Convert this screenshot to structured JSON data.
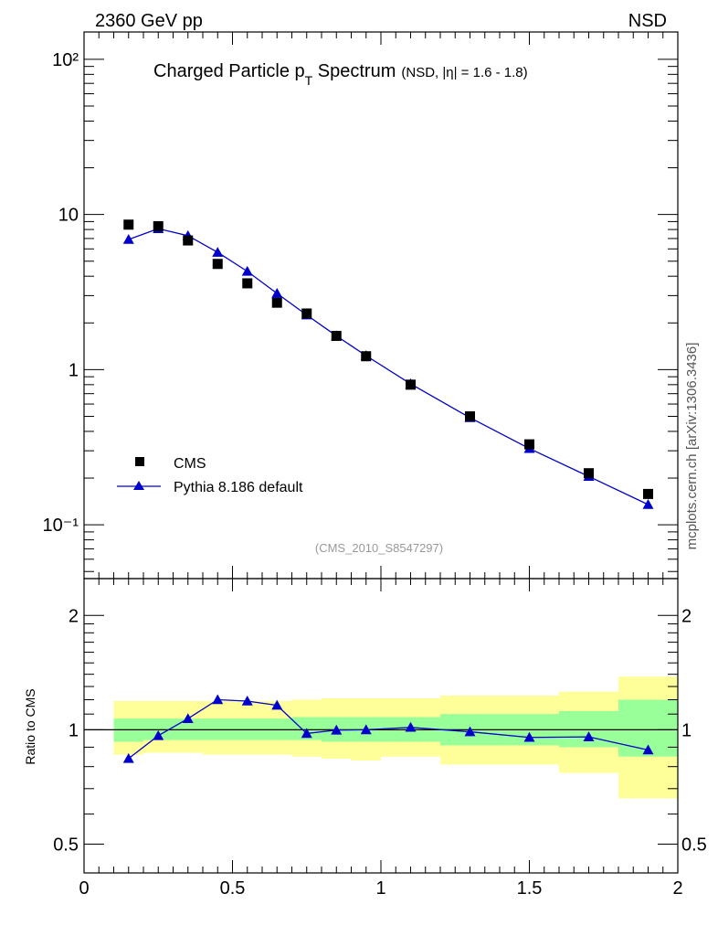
{
  "header": {
    "left": "2360 GeV pp",
    "right": "NSD"
  },
  "side_label": "mcplots.cern.ch [arXiv:1306.3436]",
  "analysis_label": "(CMS_2010_S8547297)",
  "colors": {
    "data": "#000000",
    "mc": "#0000cc",
    "band_inner": "#99ff99",
    "band_outer": "#ffff99",
    "label_gray": "#999999"
  },
  "chart_data": [
    {
      "type": "scatter",
      "title_main": "Charged Particle p",
      "title_sub": "T",
      "title_rest": " Spectrum",
      "title_note": "(NSD, |η| = 1.6 - 1.8)",
      "yscale": "log",
      "xlim": [
        0,
        2
      ],
      "ylim": [
        0.045,
        150
      ],
      "ytick_labels": [
        "10⁻¹",
        "1",
        "10",
        "10²"
      ],
      "legend": {
        "placement": "bottom-left",
        "entries": [
          "CMS",
          "Pythia 8.186 default"
        ]
      },
      "series": [
        {
          "name": "CMS",
          "marker": "square",
          "x": [
            0.15,
            0.25,
            0.35,
            0.45,
            0.55,
            0.65,
            0.75,
            0.85,
            0.95,
            1.1,
            1.3,
            1.5,
            1.7,
            1.9
          ],
          "y": [
            8.6,
            8.4,
            6.8,
            4.8,
            3.6,
            2.7,
            2.3,
            1.65,
            1.22,
            0.8,
            0.5,
            0.33,
            0.215,
            0.158
          ]
        },
        {
          "name": "Pythia 8.186 default",
          "marker": "triangle",
          "line": true,
          "x": [
            0.15,
            0.25,
            0.35,
            0.45,
            0.55,
            0.65,
            0.75,
            0.85,
            0.95,
            1.1,
            1.3,
            1.5,
            1.7,
            1.9
          ],
          "y": [
            6.9,
            8.1,
            7.3,
            5.7,
            4.3,
            3.1,
            2.25,
            1.65,
            1.23,
            0.81,
            0.49,
            0.31,
            0.205,
            0.135
          ]
        }
      ]
    },
    {
      "type": "line",
      "ylabel": "Ratio to CMS",
      "yscale": "log",
      "xlim": [
        0,
        2
      ],
      "ylim": [
        0.42,
        2.5
      ],
      "xtick_labels": [
        "0",
        "0.5",
        "1",
        "1.5",
        "2"
      ],
      "ytick_labels": [
        "0.5",
        "1",
        "2"
      ],
      "reference_line": 1,
      "bands": {
        "bin_edges": [
          0.1,
          0.2,
          0.3,
          0.4,
          0.5,
          0.6,
          0.7,
          0.8,
          0.9,
          1.0,
          1.2,
          1.4,
          1.6,
          1.8,
          2.0
        ],
        "inner_lo": [
          0.93,
          0.94,
          0.94,
          0.94,
          0.94,
          0.94,
          0.94,
          0.93,
          0.93,
          0.93,
          0.91,
          0.91,
          0.9,
          0.85
        ],
        "inner_hi": [
          1.07,
          1.07,
          1.07,
          1.07,
          1.07,
          1.07,
          1.08,
          1.08,
          1.08,
          1.08,
          1.1,
          1.1,
          1.12,
          1.2
        ],
        "outer_lo": [
          0.86,
          0.87,
          0.87,
          0.86,
          0.86,
          0.86,
          0.85,
          0.84,
          0.83,
          0.85,
          0.81,
          0.81,
          0.77,
          0.66
        ],
        "outer_hi": [
          1.19,
          1.19,
          1.19,
          1.19,
          1.19,
          1.19,
          1.2,
          1.21,
          1.21,
          1.21,
          1.23,
          1.23,
          1.26,
          1.38
        ]
      },
      "series": [
        {
          "name": "Pythia 8.186 default",
          "x": [
            0.15,
            0.25,
            0.35,
            0.45,
            0.55,
            0.65,
            0.75,
            0.85,
            0.95,
            1.1,
            1.3,
            1.5,
            1.7,
            1.9
          ],
          "y": [
            0.84,
            0.965,
            1.07,
            1.2,
            1.19,
            1.16,
            0.978,
            0.998,
            1.0,
            1.015,
            0.988,
            0.955,
            0.958,
            0.885
          ]
        }
      ]
    }
  ]
}
